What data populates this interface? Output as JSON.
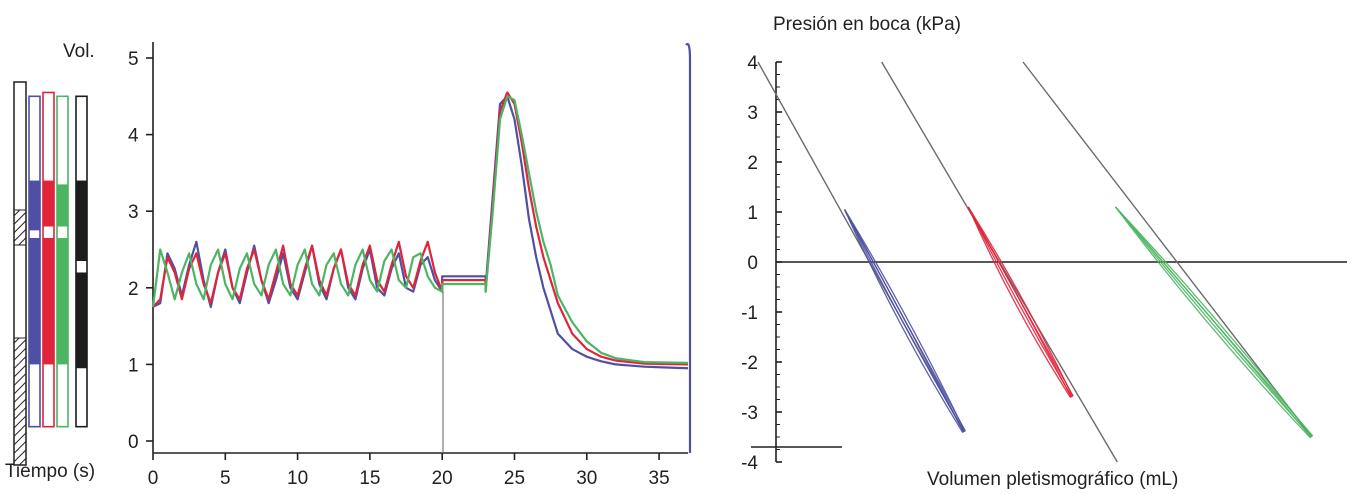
{
  "colors": {
    "blue": "#4f4fa3",
    "red": "#e0243b",
    "green": "#4cb562",
    "black": "#1c1c1c",
    "guide": "#6b6b6b"
  },
  "chart_data": [
    {
      "type": "line",
      "ylabel": "Vol.",
      "xlabel": "Tiempo (s)",
      "xlim": [
        0,
        37
      ],
      "ylim": [
        0,
        5
      ],
      "x_ticks": [
        "0",
        "5",
        "10",
        "15",
        "20",
        "25",
        "30",
        "35"
      ],
      "y_ticks": [
        "0",
        "1",
        "2",
        "3",
        "4",
        "5"
      ],
      "grid": false,
      "series": [
        {
          "color": "blue",
          "x": [
            0,
            0.5,
            1,
            1.5,
            2,
            2.5,
            3,
            3.5,
            4,
            4.5,
            5,
            5.5,
            6,
            6.5,
            7,
            7.5,
            8,
            8.5,
            9,
            9.5,
            10,
            10.5,
            11,
            11.5,
            12,
            12.5,
            13,
            13.5,
            14,
            14.5,
            15,
            15.5,
            16,
            16.5,
            17,
            17.5,
            18,
            18.5,
            19,
            19.5,
            20,
            20,
            23,
            23,
            23.5,
            24,
            24.5,
            25,
            25.5,
            26,
            26.5,
            27,
            27.5,
            28,
            29,
            30,
            31,
            32,
            34,
            37
          ],
          "y": [
            1.75,
            1.8,
            2.45,
            2.25,
            1.9,
            2.3,
            2.6,
            2.1,
            1.75,
            2.2,
            2.5,
            2.0,
            1.8,
            2.2,
            2.55,
            2.1,
            1.8,
            2.1,
            2.45,
            2.0,
            1.85,
            2.2,
            2.55,
            2.05,
            1.85,
            2.25,
            2.5,
            2.0,
            1.85,
            2.25,
            2.5,
            2.0,
            1.9,
            2.25,
            2.45,
            2.0,
            1.95,
            2.3,
            2.4,
            2.1,
            1.95,
            2.15,
            2.15,
            2.0,
            3.2,
            4.4,
            4.5,
            4.2,
            3.6,
            2.9,
            2.4,
            2.0,
            1.7,
            1.4,
            1.2,
            1.1,
            1.04,
            1.0,
            0.97,
            0.95
          ]
        },
        {
          "color": "red",
          "x": [
            0,
            0.5,
            1,
            1.5,
            2,
            2.5,
            3,
            3.5,
            4,
            4.5,
            5,
            5.5,
            6,
            6.5,
            7,
            7.5,
            8,
            8.5,
            9,
            9.5,
            10,
            10.5,
            11,
            11.5,
            12,
            12.5,
            13,
            13.5,
            14,
            14.5,
            15,
            15.5,
            16,
            16.5,
            17,
            17.5,
            18,
            18.5,
            19,
            19.5,
            20,
            20,
            23,
            23,
            23.5,
            24,
            24.5,
            25,
            25.5,
            26,
            26.5,
            27,
            27.5,
            28,
            29,
            30,
            31,
            32,
            34,
            37
          ],
          "y": [
            1.75,
            1.85,
            2.4,
            2.2,
            1.85,
            2.25,
            2.45,
            2.05,
            1.8,
            2.2,
            2.45,
            2.0,
            1.85,
            2.25,
            2.5,
            2.1,
            1.85,
            2.2,
            2.55,
            2.05,
            1.9,
            2.25,
            2.55,
            2.1,
            1.9,
            2.25,
            2.5,
            2.05,
            1.9,
            2.3,
            2.55,
            2.1,
            1.95,
            2.3,
            2.6,
            2.15,
            2.0,
            2.35,
            2.6,
            2.2,
            1.95,
            2.1,
            2.1,
            1.95,
            3.1,
            4.3,
            4.55,
            4.4,
            3.9,
            3.3,
            2.8,
            2.4,
            2.1,
            1.8,
            1.4,
            1.2,
            1.1,
            1.05,
            1.01,
            1.0
          ]
        },
        {
          "color": "green",
          "x": [
            0,
            0.5,
            1,
            1.5,
            2,
            2.5,
            3,
            3.5,
            4,
            4.5,
            5,
            5.5,
            6,
            6.5,
            7,
            7.5,
            8,
            8.5,
            9,
            9.5,
            10,
            10.5,
            11,
            11.5,
            12,
            12.5,
            13,
            13.5,
            14,
            14.5,
            15,
            15.5,
            16,
            16.5,
            17,
            17.5,
            18,
            18.5,
            19,
            19.5,
            20,
            20,
            23,
            23,
            23.5,
            24,
            24.5,
            25,
            25.5,
            26,
            26.5,
            27,
            27.5,
            28,
            29,
            30,
            31,
            32,
            34,
            37
          ],
          "y": [
            1.75,
            2.5,
            2.2,
            1.85,
            2.2,
            2.45,
            2.05,
            1.85,
            2.3,
            2.5,
            2.05,
            1.85,
            2.25,
            2.45,
            2.05,
            1.9,
            2.3,
            2.5,
            2.05,
            1.9,
            2.3,
            2.5,
            2.05,
            1.9,
            2.3,
            2.45,
            2.05,
            1.9,
            2.3,
            2.5,
            2.1,
            1.95,
            2.35,
            2.5,
            2.1,
            2.0,
            2.4,
            2.45,
            2.15,
            2.0,
            1.95,
            2.05,
            2.05,
            1.95,
            3.0,
            4.2,
            4.5,
            4.45,
            4.0,
            3.5,
            3.0,
            2.6,
            2.3,
            1.9,
            1.55,
            1.3,
            1.15,
            1.08,
            1.03,
            1.02
          ]
        }
      ],
      "bars": [
        {
          "color": "blue",
          "top": 4.5,
          "fill_ranges": [
            [
              1.0,
              2.65
            ],
            [
              2.75,
              3.4
            ]
          ]
        },
        {
          "color": "red",
          "top": 4.55,
          "fill_ranges": [
            [
              1.0,
              2.65
            ],
            [
              2.8,
              3.4
            ]
          ]
        },
        {
          "color": "green",
          "top": 4.5,
          "fill_ranges": [
            [
              1.0,
              2.65
            ],
            [
              2.8,
              3.35
            ]
          ]
        },
        {
          "color": "black",
          "top": 4.5,
          "fill_ranges": [
            [
              0.95,
              2.2
            ],
            [
              2.35,
              3.4
            ]
          ]
        }
      ]
    },
    {
      "type": "line",
      "ylabel": "Presión en boca (kPa)",
      "xlabel": "Volumen pletismográfico (mL)",
      "ylim": [
        -4,
        4
      ],
      "y_ticks": [
        "4",
        "3",
        "2",
        "1",
        "0",
        "-1",
        "-2",
        "-3",
        "-4"
      ],
      "grid": false,
      "guide_lines": [
        {
          "color": "guide",
          "from": [
            0.0,
            4.0
          ],
          "to": [
            0.35,
            -3.4
          ]
        },
        {
          "color": "guide",
          "from": [
            0.21,
            4.0
          ],
          "to": [
            0.61,
            -4.0
          ]
        },
        {
          "color": "guide",
          "from": [
            0.45,
            4.0
          ],
          "to": [
            0.94,
            -3.5
          ]
        }
      ],
      "loops": [
        {
          "color": "blue",
          "from": [
            0.147,
            1.05
          ],
          "to": [
            0.35,
            -3.4
          ]
        },
        {
          "color": "red",
          "from": [
            0.357,
            1.1
          ],
          "to": [
            0.533,
            -2.7
          ]
        },
        {
          "color": "green",
          "from": [
            0.607,
            1.1
          ],
          "to": [
            0.94,
            -3.5
          ]
        }
      ]
    }
  ]
}
